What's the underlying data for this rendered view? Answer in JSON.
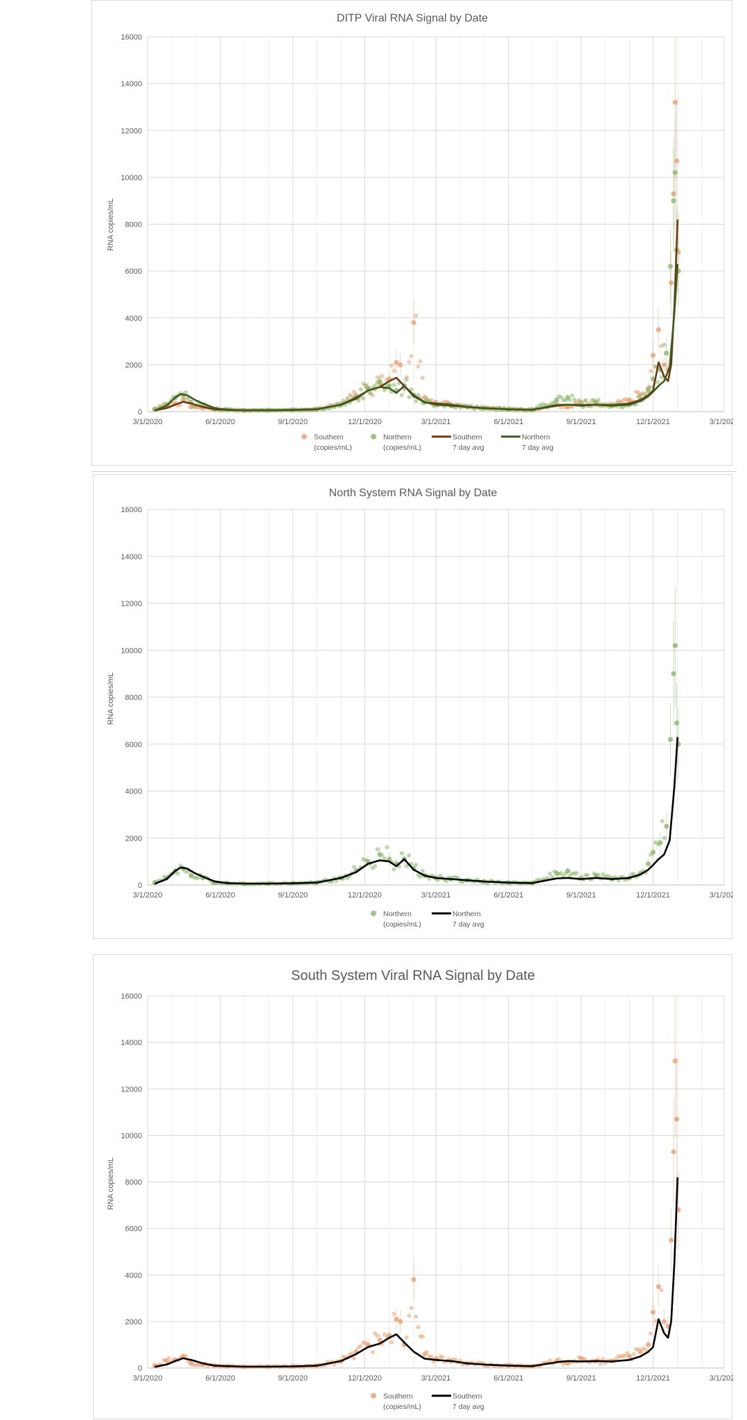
{
  "colors": {
    "southern_points": "#e8a070",
    "northern_points": "#8ab668",
    "southern_avg_top": "#6b3a14",
    "northern_avg_top": "#3d5a1e",
    "avg_black": "#000000",
    "grid_major": "#d9d9d9",
    "grid_minor": "#eeeeee"
  },
  "chart_data": [
    {
      "type": "scatter",
      "title": "DITP Viral RNA Signal by Date",
      "ylabel": "RNA copies/mL",
      "xlabel": "",
      "ylim": [
        0,
        16000
      ],
      "yticks": [
        "0",
        "2000",
        "4000",
        "6000",
        "8000",
        "10000",
        "12000",
        "14000",
        "16000"
      ],
      "xticks": [
        "3/1/2020",
        "6/1/2020",
        "9/1/2020",
        "12/1/2020",
        "3/1/2021",
        "6/1/2021",
        "9/1/2021",
        "12/1/2021",
        "3/1/2022"
      ],
      "grid": true,
      "legend_position": "bottom",
      "legend": [
        {
          "label": "Southern",
          "sub": "(copies/mL)",
          "kind": "marker",
          "color": "#e8a070"
        },
        {
          "label": "Northern",
          "sub": "(copies/mL)",
          "kind": "marker",
          "color": "#8ab668"
        },
        {
          "label": "Southern",
          "sub": "7 day avg",
          "kind": "line",
          "color": "#6b3a14"
        },
        {
          "label": "Northern",
          "sub": "7 day avg",
          "kind": "line",
          "color": "#3d5a1e"
        }
      ],
      "series": [
        {
          "name": "Southern (copies/mL)",
          "kind": "scatter",
          "color": "#e8a070",
          "x": [
            "2020-03-10",
            "2020-03-25",
            "2020-04-05",
            "2020-04-15",
            "2020-04-25",
            "2020-05-10",
            "2020-05-25",
            "2020-06-10",
            "2020-07-01",
            "2020-08-01",
            "2020-09-01",
            "2020-10-01",
            "2020-11-01",
            "2020-11-20",
            "2020-12-05",
            "2020-12-20",
            "2021-01-01",
            "2021-01-10",
            "2021-01-15",
            "2021-01-20",
            "2021-02-01",
            "2021-02-15",
            "2021-03-01",
            "2021-03-20",
            "2021-04-10",
            "2021-05-01",
            "2021-06-01",
            "2021-07-01",
            "2021-08-01",
            "2021-08-15",
            "2021-09-01",
            "2021-09-20",
            "2021-10-10",
            "2021-11-01",
            "2021-11-15",
            "2021-11-25",
            "2021-12-01",
            "2021-12-08",
            "2021-12-15",
            "2021-12-20",
            "2021-12-24",
            "2021-12-27",
            "2021-12-29",
            "2021-12-31",
            "2022-01-02"
          ],
          "y": [
            100,
            300,
            350,
            500,
            200,
            150,
            100,
            80,
            50,
            60,
            70,
            100,
            300,
            700,
            1000,
            1200,
            1400,
            2100,
            2000,
            1000,
            3800,
            600,
            400,
            300,
            200,
            150,
            100,
            80,
            300,
            200,
            400,
            300,
            300,
            500,
            700,
            1000,
            2400,
            3500,
            2000,
            1800,
            5500,
            9300,
            13200,
            10700,
            6800
          ]
        },
        {
          "name": "Northern (copies/mL)",
          "kind": "scatter",
          "color": "#8ab668",
          "x": [
            "2020-03-10",
            "2020-03-25",
            "2020-04-05",
            "2020-04-15",
            "2020-04-25",
            "2020-05-10",
            "2020-05-25",
            "2020-06-10",
            "2020-07-01",
            "2020-08-01",
            "2020-09-01",
            "2020-10-01",
            "2020-11-01",
            "2020-11-20",
            "2020-12-05",
            "2020-12-20",
            "2021-01-01",
            "2021-01-10",
            "2021-01-20",
            "2021-02-01",
            "2021-02-15",
            "2021-03-01",
            "2021-03-20",
            "2021-04-10",
            "2021-05-01",
            "2021-06-01",
            "2021-07-01",
            "2021-08-01",
            "2021-08-15",
            "2021-09-01",
            "2021-09-20",
            "2021-10-10",
            "2021-11-01",
            "2021-11-15",
            "2021-11-25",
            "2021-12-01",
            "2021-12-10",
            "2021-12-18",
            "2021-12-23",
            "2021-12-27",
            "2021-12-29",
            "2021-12-31",
            "2022-01-02"
          ],
          "y": [
            100,
            300,
            600,
            700,
            400,
            300,
            100,
            80,
            50,
            60,
            70,
            100,
            300,
            600,
            1000,
            1300,
            1100,
            900,
            1100,
            700,
            400,
            300,
            250,
            200,
            150,
            100,
            80,
            500,
            600,
            300,
            400,
            250,
            300,
            500,
            900,
            1400,
            1800,
            2500,
            6200,
            9000,
            10200,
            6900,
            6000
          ]
        },
        {
          "name": "Southern 7 day avg",
          "kind": "line",
          "color": "#6b3a14",
          "x": [
            "2020-03-10",
            "2020-03-25",
            "2020-04-05",
            "2020-04-15",
            "2020-04-25",
            "2020-05-10",
            "2020-05-25",
            "2020-06-10",
            "2020-07-01",
            "2020-08-01",
            "2020-09-01",
            "2020-10-01",
            "2020-11-01",
            "2020-11-20",
            "2020-12-05",
            "2020-12-20",
            "2021-01-01",
            "2021-01-10",
            "2021-01-20",
            "2021-02-01",
            "2021-02-15",
            "2021-03-01",
            "2021-03-20",
            "2021-04-10",
            "2021-05-01",
            "2021-06-01",
            "2021-07-01",
            "2021-08-01",
            "2021-08-15",
            "2021-09-01",
            "2021-09-20",
            "2021-10-10",
            "2021-11-01",
            "2021-11-15",
            "2021-11-25",
            "2021-12-01",
            "2021-12-08",
            "2021-12-15",
            "2021-12-20",
            "2021-12-24",
            "2021-12-28",
            "2022-01-01"
          ],
          "y": [
            50,
            150,
            300,
            420,
            350,
            200,
            100,
            80,
            60,
            60,
            70,
            100,
            300,
            600,
            900,
            1050,
            1300,
            1450,
            1100,
            700,
            400,
            350,
            300,
            200,
            150,
            100,
            80,
            250,
            300,
            280,
            300,
            280,
            350,
            500,
            700,
            900,
            2100,
            1500,
            1300,
            2000,
            4500,
            8200
          ]
        },
        {
          "name": "Northern 7 day avg",
          "kind": "line",
          "color": "#3d5a1e",
          "x": [
            "2020-03-10",
            "2020-03-25",
            "2020-04-05",
            "2020-04-12",
            "2020-04-20",
            "2020-04-30",
            "2020-05-10",
            "2020-05-25",
            "2020-06-10",
            "2020-07-01",
            "2020-08-01",
            "2020-09-01",
            "2020-10-01",
            "2020-11-01",
            "2020-11-20",
            "2020-12-05",
            "2020-12-20",
            "2021-01-01",
            "2021-01-10",
            "2021-01-20",
            "2021-02-01",
            "2021-02-15",
            "2021-03-01",
            "2021-03-20",
            "2021-04-10",
            "2021-05-01",
            "2021-06-01",
            "2021-07-01",
            "2021-08-01",
            "2021-08-15",
            "2021-09-01",
            "2021-09-20",
            "2021-10-10",
            "2021-11-01",
            "2021-11-15",
            "2021-11-25",
            "2021-12-01",
            "2021-12-08",
            "2021-12-15",
            "2021-12-22",
            "2021-12-28",
            "2022-01-01"
          ],
          "y": [
            50,
            250,
            600,
            750,
            700,
            500,
            350,
            150,
            80,
            60,
            60,
            70,
            100,
            300,
            550,
            900,
            1050,
            1000,
            800,
            1100,
            650,
            400,
            300,
            250,
            200,
            150,
            100,
            80,
            280,
            300,
            250,
            300,
            250,
            300,
            450,
            650,
            850,
            1100,
            1300,
            1900,
            4200,
            6300
          ]
        }
      ]
    },
    {
      "type": "scatter",
      "title": "North System RNA Signal by Date",
      "ylabel": "RNA copies/mL",
      "xlabel": "",
      "ylim": [
        0,
        16000
      ],
      "yticks": [
        "0",
        "2000",
        "4000",
        "6000",
        "8000",
        "10000",
        "12000",
        "14000",
        "16000"
      ],
      "xticks": [
        "3/1/2020",
        "6/1/2020",
        "9/1/2020",
        "12/1/2020",
        "3/1/2021",
        "6/1/2021",
        "9/1/2021",
        "12/1/2021",
        "3/1/2022"
      ],
      "grid": true,
      "legend_position": "bottom",
      "legend": [
        {
          "label": "Northern",
          "sub": "(copies/mL)",
          "kind": "marker",
          "color": "#8ab668"
        },
        {
          "label": "Northern",
          "sub": "7 day avg",
          "kind": "line",
          "color": "#000000"
        }
      ],
      "series": [
        {
          "name": "Northern (copies/mL)",
          "kind": "scatter",
          "color": "#8ab668",
          "x": [
            "2020-03-10",
            "2020-03-25",
            "2020-04-05",
            "2020-04-15",
            "2020-04-25",
            "2020-05-10",
            "2020-05-25",
            "2020-06-10",
            "2020-07-01",
            "2020-08-01",
            "2020-09-01",
            "2020-10-01",
            "2020-11-01",
            "2020-11-20",
            "2020-12-05",
            "2020-12-20",
            "2021-01-01",
            "2021-01-10",
            "2021-01-20",
            "2021-02-01",
            "2021-02-15",
            "2021-03-01",
            "2021-03-20",
            "2021-04-10",
            "2021-05-01",
            "2021-06-01",
            "2021-07-01",
            "2021-08-01",
            "2021-08-15",
            "2021-09-01",
            "2021-09-20",
            "2021-10-10",
            "2021-11-01",
            "2021-11-15",
            "2021-11-25",
            "2021-12-01",
            "2021-12-10",
            "2021-12-18",
            "2021-12-23",
            "2021-12-27",
            "2021-12-29",
            "2021-12-31",
            "2022-01-02"
          ],
          "y": [
            100,
            300,
            600,
            700,
            400,
            300,
            100,
            80,
            50,
            60,
            70,
            100,
            300,
            600,
            1000,
            1300,
            1100,
            900,
            1100,
            700,
            400,
            300,
            250,
            200,
            150,
            100,
            80,
            500,
            600,
            300,
            400,
            250,
            300,
            500,
            900,
            1400,
            1800,
            2500,
            6200,
            9000,
            10200,
            6900,
            6000
          ]
        },
        {
          "name": "Northern 7 day avg",
          "kind": "line",
          "color": "#000000",
          "x": [
            "2020-03-10",
            "2020-03-25",
            "2020-04-05",
            "2020-04-12",
            "2020-04-20",
            "2020-04-30",
            "2020-05-10",
            "2020-05-25",
            "2020-06-10",
            "2020-07-01",
            "2020-08-01",
            "2020-09-01",
            "2020-10-01",
            "2020-11-01",
            "2020-11-20",
            "2020-12-05",
            "2020-12-20",
            "2021-01-01",
            "2021-01-10",
            "2021-01-20",
            "2021-02-01",
            "2021-02-15",
            "2021-03-01",
            "2021-03-20",
            "2021-04-10",
            "2021-05-01",
            "2021-06-01",
            "2021-07-01",
            "2021-08-01",
            "2021-08-15",
            "2021-09-01",
            "2021-09-20",
            "2021-10-10",
            "2021-11-01",
            "2021-11-15",
            "2021-11-25",
            "2021-12-01",
            "2021-12-08",
            "2021-12-15",
            "2021-12-22",
            "2021-12-28",
            "2022-01-01"
          ],
          "y": [
            50,
            250,
            600,
            750,
            700,
            500,
            350,
            150,
            80,
            60,
            60,
            70,
            100,
            300,
            550,
            900,
            1050,
            1000,
            800,
            1100,
            650,
            400,
            300,
            250,
            200,
            150,
            100,
            80,
            280,
            300,
            250,
            300,
            250,
            300,
            450,
            650,
            850,
            1100,
            1300,
            1900,
            4200,
            6300
          ]
        }
      ]
    },
    {
      "type": "scatter",
      "title": "South System Viral RNA Signal by Date",
      "ylabel": "RNA copies/mL",
      "xlabel": "",
      "ylim": [
        0,
        16000
      ],
      "yticks": [
        "0",
        "2000",
        "4000",
        "6000",
        "8000",
        "10000",
        "12000",
        "14000",
        "16000"
      ],
      "xticks": [
        "3/1/2020",
        "6/1/2020",
        "9/1/2020",
        "12/1/2020",
        "3/1/2021",
        "6/1/2021",
        "9/1/2021",
        "12/1/2021",
        "3/1/2022"
      ],
      "grid": true,
      "legend_position": "bottom",
      "legend": [
        {
          "label": "Southern",
          "sub": "(copies/mL)",
          "kind": "marker",
          "color": "#e8a070"
        },
        {
          "label": "Southern",
          "sub": "7 day avg",
          "kind": "line",
          "color": "#000000"
        }
      ],
      "series": [
        {
          "name": "Southern (copies/mL)",
          "kind": "scatter",
          "color": "#e8a070",
          "x": [
            "2020-03-10",
            "2020-03-25",
            "2020-04-05",
            "2020-04-15",
            "2020-04-25",
            "2020-05-10",
            "2020-05-25",
            "2020-06-10",
            "2020-07-01",
            "2020-08-01",
            "2020-09-01",
            "2020-10-01",
            "2020-11-01",
            "2020-11-20",
            "2020-12-05",
            "2020-12-20",
            "2021-01-01",
            "2021-01-10",
            "2021-01-15",
            "2021-01-20",
            "2021-02-01",
            "2021-02-15",
            "2021-03-01",
            "2021-03-20",
            "2021-04-10",
            "2021-05-01",
            "2021-06-01",
            "2021-07-01",
            "2021-08-01",
            "2021-08-15",
            "2021-09-01",
            "2021-09-20",
            "2021-10-10",
            "2021-11-01",
            "2021-11-15",
            "2021-11-25",
            "2021-12-01",
            "2021-12-08",
            "2021-12-15",
            "2021-12-20",
            "2021-12-24",
            "2021-12-27",
            "2021-12-29",
            "2021-12-31",
            "2022-01-02"
          ],
          "y": [
            100,
            300,
            350,
            500,
            200,
            150,
            100,
            80,
            50,
            60,
            70,
            100,
            300,
            700,
            1000,
            1200,
            1400,
            2100,
            2000,
            1000,
            3800,
            600,
            400,
            300,
            200,
            150,
            100,
            80,
            300,
            200,
            400,
            300,
            300,
            500,
            700,
            1000,
            2400,
            3500,
            2000,
            1800,
            5500,
            9300,
            13200,
            10700,
            6800
          ]
        },
        {
          "name": "Southern 7 day avg",
          "kind": "line",
          "color": "#000000",
          "x": [
            "2020-03-10",
            "2020-03-25",
            "2020-04-05",
            "2020-04-15",
            "2020-04-25",
            "2020-05-10",
            "2020-05-25",
            "2020-06-10",
            "2020-07-01",
            "2020-08-01",
            "2020-09-01",
            "2020-10-01",
            "2020-11-01",
            "2020-11-20",
            "2020-12-05",
            "2020-12-20",
            "2021-01-01",
            "2021-01-10",
            "2021-01-20",
            "2021-02-01",
            "2021-02-15",
            "2021-03-01",
            "2021-03-20",
            "2021-04-10",
            "2021-05-01",
            "2021-06-01",
            "2021-07-01",
            "2021-08-01",
            "2021-08-15",
            "2021-09-01",
            "2021-09-20",
            "2021-10-10",
            "2021-11-01",
            "2021-11-15",
            "2021-11-25",
            "2021-12-01",
            "2021-12-08",
            "2021-12-15",
            "2021-12-20",
            "2021-12-24",
            "2021-12-28",
            "2022-01-01"
          ],
          "y": [
            50,
            150,
            300,
            420,
            350,
            200,
            100,
            80,
            60,
            60,
            70,
            100,
            300,
            600,
            900,
            1050,
            1300,
            1450,
            1100,
            700,
            400,
            350,
            300,
            200,
            150,
            100,
            80,
            250,
            300,
            280,
            300,
            280,
            350,
            500,
            700,
            900,
            2100,
            1500,
            1300,
            2000,
            4500,
            8200
          ]
        }
      ]
    }
  ]
}
